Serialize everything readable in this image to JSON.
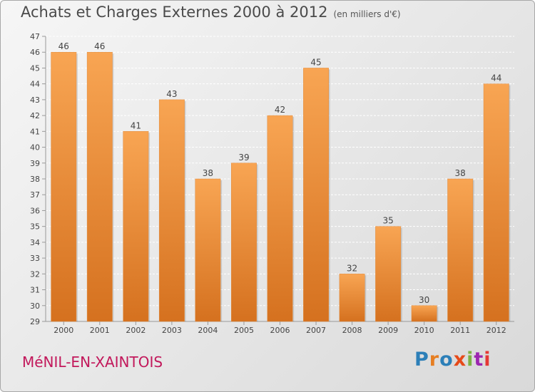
{
  "title": "Achats et Charges Externes 2000 à 2012",
  "unit": "(en milliers d'€)",
  "town": "MéNIL-EN-XAINTOIS",
  "logo": {
    "text": "Proxiti",
    "colors": [
      "#2c7fb8",
      "#e67e22",
      "#2c7fb8",
      "#e64a19",
      "#7cb342",
      "#9c27b0",
      "#e53935"
    ]
  },
  "colors": {
    "bar_top": "#f8a553",
    "bar_bottom": "#d5711f",
    "grid": "#ffffff"
  },
  "chart_data": {
    "type": "bar",
    "categories": [
      "2000",
      "2001",
      "2002",
      "2003",
      "2004",
      "2005",
      "2006",
      "2007",
      "2008",
      "2009",
      "2010",
      "2011",
      "2012"
    ],
    "values": [
      46,
      46,
      41,
      43,
      38,
      39,
      42,
      45,
      32,
      35,
      30,
      38,
      44
    ],
    "title": "Achats et Charges Externes 2000 à 2012",
    "xlabel": "",
    "ylabel": "",
    "ylim": [
      29,
      47
    ],
    "yticks": [
      29,
      30,
      31,
      32,
      33,
      34,
      35,
      36,
      37,
      38,
      39,
      40,
      41,
      42,
      43,
      44,
      45,
      46,
      47
    ],
    "grid": true
  }
}
